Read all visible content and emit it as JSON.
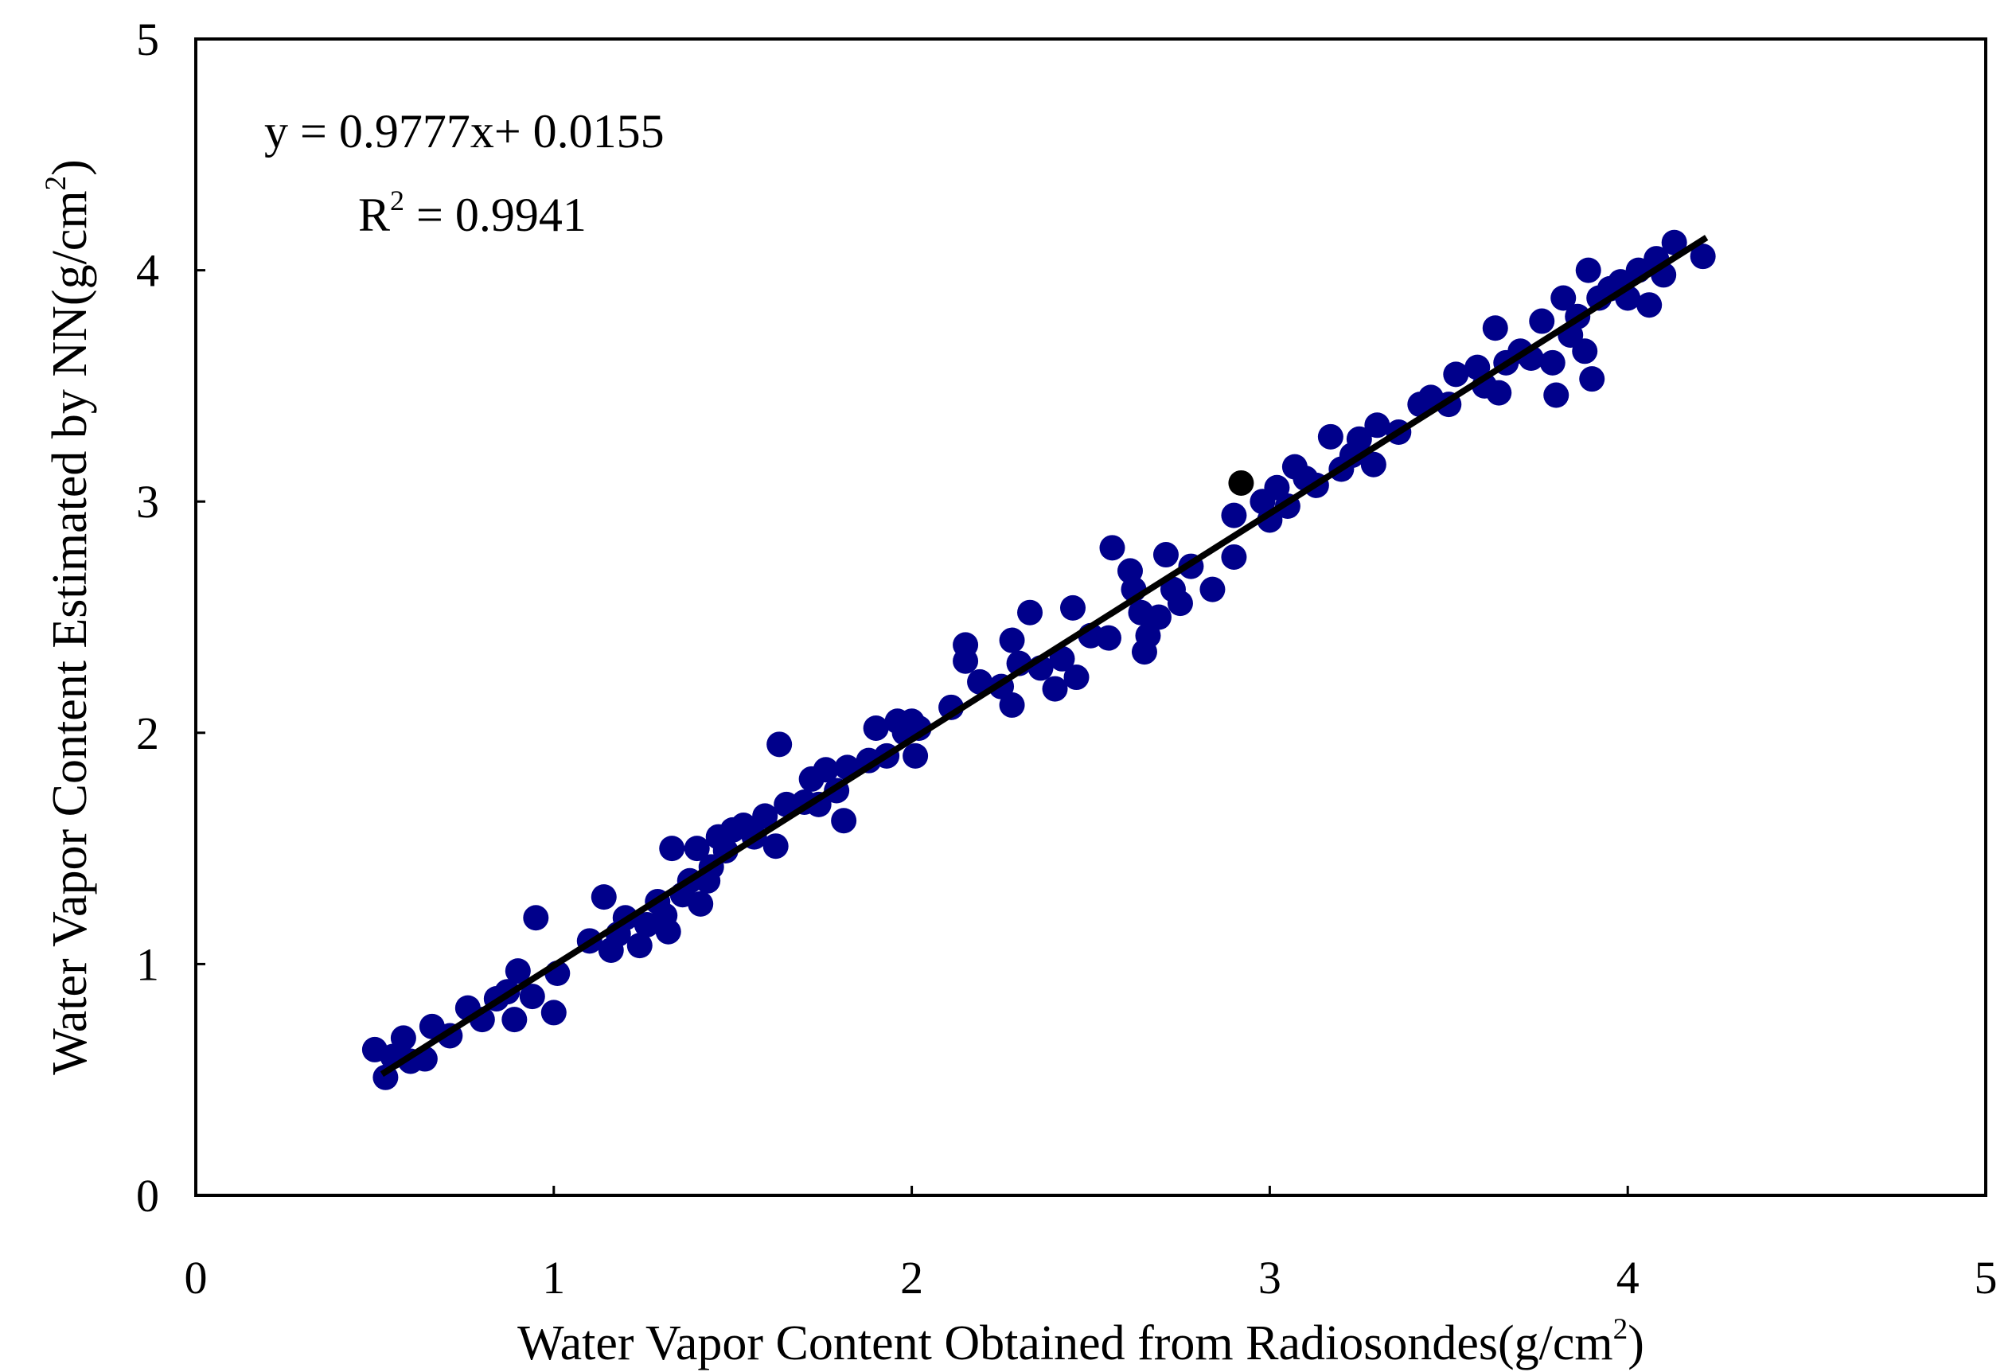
{
  "chart_data": {
    "type": "scatter",
    "x_label": [
      "Water Vapor Content Obtained from Radiosondes(g/cm",
      "2",
      ")"
    ],
    "y_label": [
      "Water Vapor Content Estimated by NN(g/cm",
      "2",
      ")"
    ],
    "annotations": [
      [
        "y = 0.9777x+ 0.0155"
      ],
      [
        "R",
        "2",
        " = 0.9941"
      ]
    ],
    "xlim": [
      0,
      5
    ],
    "ylim": [
      0,
      5
    ],
    "xticks": [
      0,
      1,
      2,
      3,
      4,
      5
    ],
    "yticks": [
      0,
      1,
      2,
      3,
      4,
      5
    ],
    "series": [
      {
        "color": "#00008b",
        "x": [
          0.5,
          0.53,
          0.55,
          0.58,
          0.6,
          0.64,
          0.66,
          0.71,
          0.76,
          0.8,
          0.84,
          0.87,
          0.89,
          0.9,
          0.94,
          0.95,
          1.0,
          1.01,
          1.1,
          1.14,
          1.16,
          1.18,
          1.2,
          1.24,
          1.26,
          1.29,
          1.31,
          1.32,
          1.33,
          1.36,
          1.38,
          1.4,
          1.41,
          1.43,
          1.44,
          1.46,
          1.48,
          1.5,
          1.53,
          1.56,
          1.59,
          1.62,
          1.63,
          1.65,
          1.7,
          1.72,
          1.74,
          1.76,
          1.79,
          1.81,
          1.82,
          1.88,
          1.9,
          1.93,
          1.96,
          1.98,
          2.0,
          2.01,
          2.02,
          2.11,
          2.15,
          2.15,
          2.19,
          2.25,
          2.28,
          2.28,
          2.3,
          2.33,
          2.36,
          2.4,
          2.42,
          2.45,
          2.46,
          2.5,
          2.55,
          2.56,
          2.61,
          2.62,
          2.64,
          2.65,
          2.66,
          2.69,
          2.71,
          2.73,
          2.75,
          2.78,
          2.84,
          2.9,
          2.9,
          2.98,
          3.0,
          3.02,
          3.05,
          3.07,
          3.1,
          3.13,
          3.17,
          3.2,
          3.23,
          3.25,
          3.29,
          3.3,
          3.36,
          3.42,
          3.45,
          3.5,
          3.52,
          3.58,
          3.6,
          3.63,
          3.64,
          3.66,
          3.7,
          3.73,
          3.76,
          3.79,
          3.8,
          3.82,
          3.84,
          3.86,
          3.88,
          3.89,
          3.9,
          3.92,
          3.95,
          3.98,
          4.0,
          4.03,
          4.06,
          4.08,
          4.1,
          4.13,
          4.21
        ],
        "values": [
          0.63,
          0.51,
          0.6,
          0.68,
          0.58,
          0.59,
          0.73,
          0.69,
          0.81,
          0.76,
          0.85,
          0.88,
          0.76,
          0.97,
          0.86,
          1.2,
          0.79,
          0.96,
          1.1,
          1.29,
          1.06,
          1.13,
          1.2,
          1.08,
          1.17,
          1.27,
          1.21,
          1.14,
          1.5,
          1.3,
          1.36,
          1.5,
          1.26,
          1.36,
          1.42,
          1.55,
          1.49,
          1.58,
          1.6,
          1.55,
          1.64,
          1.51,
          1.95,
          1.69,
          1.7,
          1.8,
          1.69,
          1.84,
          1.75,
          1.62,
          1.85,
          1.88,
          2.02,
          1.9,
          2.05,
          2.0,
          2.05,
          1.9,
          2.02,
          2.11,
          2.38,
          2.31,
          2.22,
          2.2,
          2.4,
          2.12,
          2.3,
          2.52,
          2.28,
          2.19,
          2.32,
          2.54,
          2.24,
          2.42,
          2.41,
          2.8,
          2.7,
          2.62,
          2.52,
          2.35,
          2.42,
          2.5,
          2.77,
          2.62,
          2.56,
          2.72,
          2.62,
          2.76,
          2.94,
          3.0,
          2.92,
          3.06,
          2.98,
          3.15,
          3.1,
          3.07,
          3.28,
          3.14,
          3.2,
          3.27,
          3.16,
          3.33,
          3.3,
          3.42,
          3.45,
          3.42,
          3.55,
          3.58,
          3.5,
          3.75,
          3.47,
          3.6,
          3.65,
          3.62,
          3.78,
          3.6,
          3.46,
          3.88,
          3.72,
          3.8,
          3.65,
          4.0,
          3.53,
          3.88,
          3.92,
          3.95,
          3.88,
          4.0,
          3.85,
          4.05,
          3.98,
          4.12,
          4.06
        ]
      },
      {
        "color": "#000000",
        "x": [
          2.92
        ],
        "values": [
          3.08
        ]
      }
    ],
    "trendline": {
      "slope": 0.9777,
      "intercept": 0.0155,
      "x_range": [
        0.52,
        4.22
      ],
      "color": "#000000"
    }
  }
}
